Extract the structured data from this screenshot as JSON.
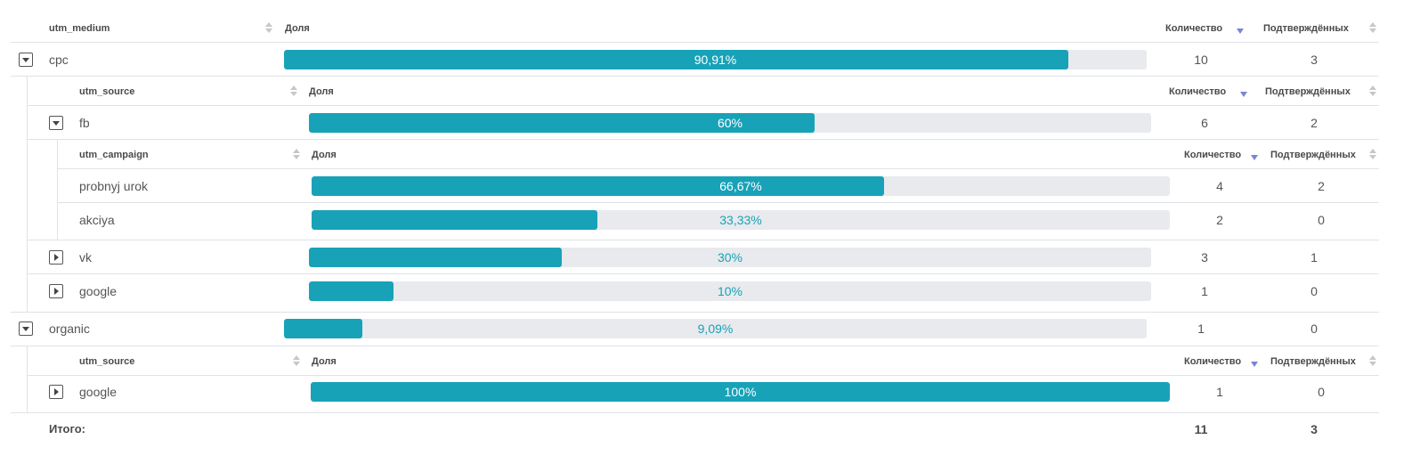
{
  "header": {
    "col1": "utm_medium",
    "col2": "Доля",
    "col3": "Количество",
    "col4": "Подтверждённых"
  },
  "rows": {
    "cpc": {
      "label": "cpc",
      "pct": "90,91%",
      "share": 90.91,
      "count": "10",
      "confirmed": "3"
    },
    "cpc_sub_header": {
      "col1": "utm_source",
      "col2": "Доля",
      "col3": "Количество",
      "col4": "Подтверждённых"
    },
    "fb": {
      "label": "fb",
      "pct": "60%",
      "share": 60,
      "count": "6",
      "confirmed": "2"
    },
    "fb_sub_header": {
      "col1": "utm_campaign",
      "col2": "Доля",
      "col3": "Количество",
      "col4": "Подтверждённых"
    },
    "probnyj": {
      "label": "probnyj urok",
      "pct": "66,67%",
      "share": 66.67,
      "count": "4",
      "confirmed": "2"
    },
    "akciya": {
      "label": "akciya",
      "pct": "33,33%",
      "share": 33.33,
      "count": "2",
      "confirmed": "0"
    },
    "vk": {
      "label": "vk",
      "pct": "30%",
      "share": 30,
      "count": "3",
      "confirmed": "1"
    },
    "google1": {
      "label": "google",
      "pct": "10%",
      "share": 10,
      "count": "1",
      "confirmed": "0"
    },
    "organic": {
      "label": "organic",
      "pct": "9,09%",
      "share": 9.09,
      "count": "1",
      "confirmed": "0"
    },
    "organic_sub_header": {
      "col1": "utm_source",
      "col2": "Доля",
      "col3": "Количество",
      "col4": "Подтверждённых"
    },
    "google2": {
      "label": "google",
      "pct": "100%",
      "share": 100,
      "count": "1",
      "confirmed": "0"
    }
  },
  "total": {
    "label": "Итого:",
    "count": "11",
    "confirmed": "3"
  },
  "colors": {
    "bar_fill": "#18a2b8",
    "bar_track": "#e8eaed",
    "sort_active": "#7b84d4"
  }
}
